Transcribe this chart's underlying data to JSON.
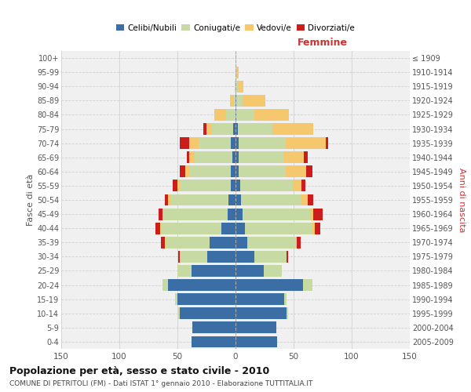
{
  "age_groups": [
    "0-4",
    "5-9",
    "10-14",
    "15-19",
    "20-24",
    "25-29",
    "30-34",
    "35-39",
    "40-44",
    "45-49",
    "50-54",
    "55-59",
    "60-64",
    "65-69",
    "70-74",
    "75-79",
    "80-84",
    "85-89",
    "90-94",
    "95-99",
    "100+"
  ],
  "birth_years": [
    "2005-2009",
    "2000-2004",
    "1995-1999",
    "1990-1994",
    "1985-1989",
    "1980-1984",
    "1975-1979",
    "1970-1974",
    "1965-1969",
    "1960-1964",
    "1955-1959",
    "1950-1954",
    "1945-1949",
    "1940-1944",
    "1935-1939",
    "1930-1934",
    "1925-1929",
    "1920-1924",
    "1915-1919",
    "1910-1914",
    "≤ 1909"
  ],
  "males": {
    "celibi": [
      38,
      37,
      48,
      50,
      58,
      38,
      24,
      22,
      12,
      7,
      6,
      4,
      4,
      3,
      4,
      2,
      0,
      0,
      0,
      0,
      0
    ],
    "coniugati": [
      0,
      0,
      1,
      2,
      5,
      12,
      24,
      38,
      52,
      55,
      50,
      44,
      36,
      32,
      28,
      18,
      8,
      2,
      1,
      0,
      0
    ],
    "vedovi": [
      0,
      0,
      0,
      0,
      0,
      0,
      0,
      1,
      1,
      1,
      2,
      2,
      3,
      5,
      8,
      5,
      10,
      3,
      0,
      0,
      0
    ],
    "divorziati": [
      0,
      0,
      0,
      0,
      0,
      0,
      1,
      3,
      4,
      3,
      3,
      4,
      5,
      2,
      8,
      3,
      0,
      0,
      0,
      0,
      0
    ]
  },
  "females": {
    "nubili": [
      36,
      35,
      44,
      42,
      58,
      24,
      16,
      10,
      8,
      6,
      5,
      4,
      3,
      3,
      3,
      2,
      1,
      1,
      0,
      0,
      0
    ],
    "coniugate": [
      0,
      0,
      1,
      2,
      8,
      16,
      28,
      42,
      58,
      58,
      52,
      45,
      40,
      38,
      40,
      30,
      15,
      5,
      2,
      1,
      0
    ],
    "vedove": [
      0,
      0,
      0,
      0,
      0,
      0,
      0,
      1,
      2,
      3,
      5,
      8,
      18,
      18,
      35,
      35,
      30,
      20,
      5,
      2,
      0
    ],
    "divorziate": [
      0,
      0,
      0,
      0,
      0,
      0,
      1,
      3,
      5,
      8,
      5,
      3,
      5,
      3,
      2,
      0,
      0,
      0,
      0,
      0,
      0
    ]
  },
  "color_celibi": "#3a6ea5",
  "color_coniugati": "#c8daa4",
  "color_vedovi": "#f5c86e",
  "color_divorziati": "#cc1c1c",
  "title": "Popolazione per età, sesso e stato civile - 2010",
  "subtitle": "COMUNE DI PETRITOLI (FM) - Dati ISTAT 1° gennaio 2010 - Elaborazione TUTTITALIA.IT",
  "xlabel_right": "Femmine",
  "ylabel_left": "Fasce di età",
  "ylabel_right": "Anni di nascita",
  "xlim": 150,
  "bg_color": "#f0f0f0",
  "grid_color": "#d0d0d0"
}
